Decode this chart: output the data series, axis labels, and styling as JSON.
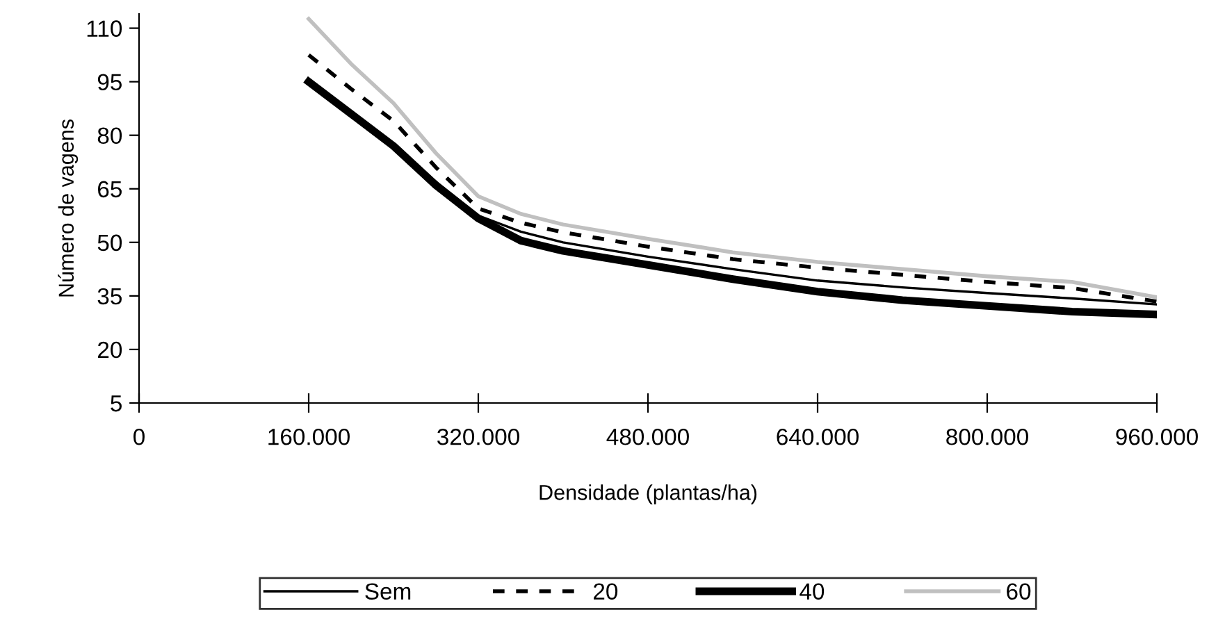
{
  "chart_data": {
    "type": "line",
    "xlabel": "Densidade (plantas/ha)",
    "ylabel": "Número de vagens",
    "x": [
      160000,
      200000,
      240000,
      280000,
      320000,
      360000,
      400000,
      480000,
      560000,
      640000,
      720000,
      800000,
      880000,
      960000
    ],
    "xlim": [
      0,
      960000
    ],
    "xticks": [
      {
        "value": 0,
        "label": "0"
      },
      {
        "value": 160000,
        "label": "160.000"
      },
      {
        "value": 320000,
        "label": "320.000"
      },
      {
        "value": 480000,
        "label": "480.000"
      },
      {
        "value": 640000,
        "label": "640.000"
      },
      {
        "value": 800000,
        "label": "800.000"
      },
      {
        "value": 960000,
        "label": "960.000"
      }
    ],
    "ylim": [
      5,
      114
    ],
    "yticks": [
      5,
      20,
      35,
      50,
      65,
      80,
      95,
      110
    ],
    "grid": false,
    "legend": "bottom",
    "marker": "none",
    "series": [
      {
        "name": "Sem",
        "color": "#000000",
        "line_style": "solid",
        "values": [
          95,
          86,
          77,
          67,
          57.5,
          53,
          50,
          46,
          42.5,
          39.3,
          37.4,
          35.8,
          34.3,
          32.6
        ]
      },
      {
        "name": "20",
        "color": "#000000",
        "line_style": "dashed",
        "values": [
          102.5,
          93,
          84,
          71,
          59.5,
          55.5,
          52.8,
          48.8,
          45.3,
          42.9,
          40.9,
          38.9,
          37.2,
          33.4
        ]
      },
      {
        "name": "40",
        "color": "#000000",
        "line_style": "solid",
        "values": [
          95,
          86,
          77,
          66,
          56.7,
          50.5,
          47.6,
          43.7,
          39.7,
          36.2,
          33.8,
          32.2,
          30.6,
          29.8
        ]
      },
      {
        "name": "60",
        "color": "#c0c0c0",
        "line_style": "solid",
        "values": [
          112.6,
          100,
          89,
          75,
          62.9,
          58,
          55,
          51,
          47.2,
          44.5,
          42.5,
          40.5,
          38.9,
          34.6
        ]
      }
    ]
  }
}
